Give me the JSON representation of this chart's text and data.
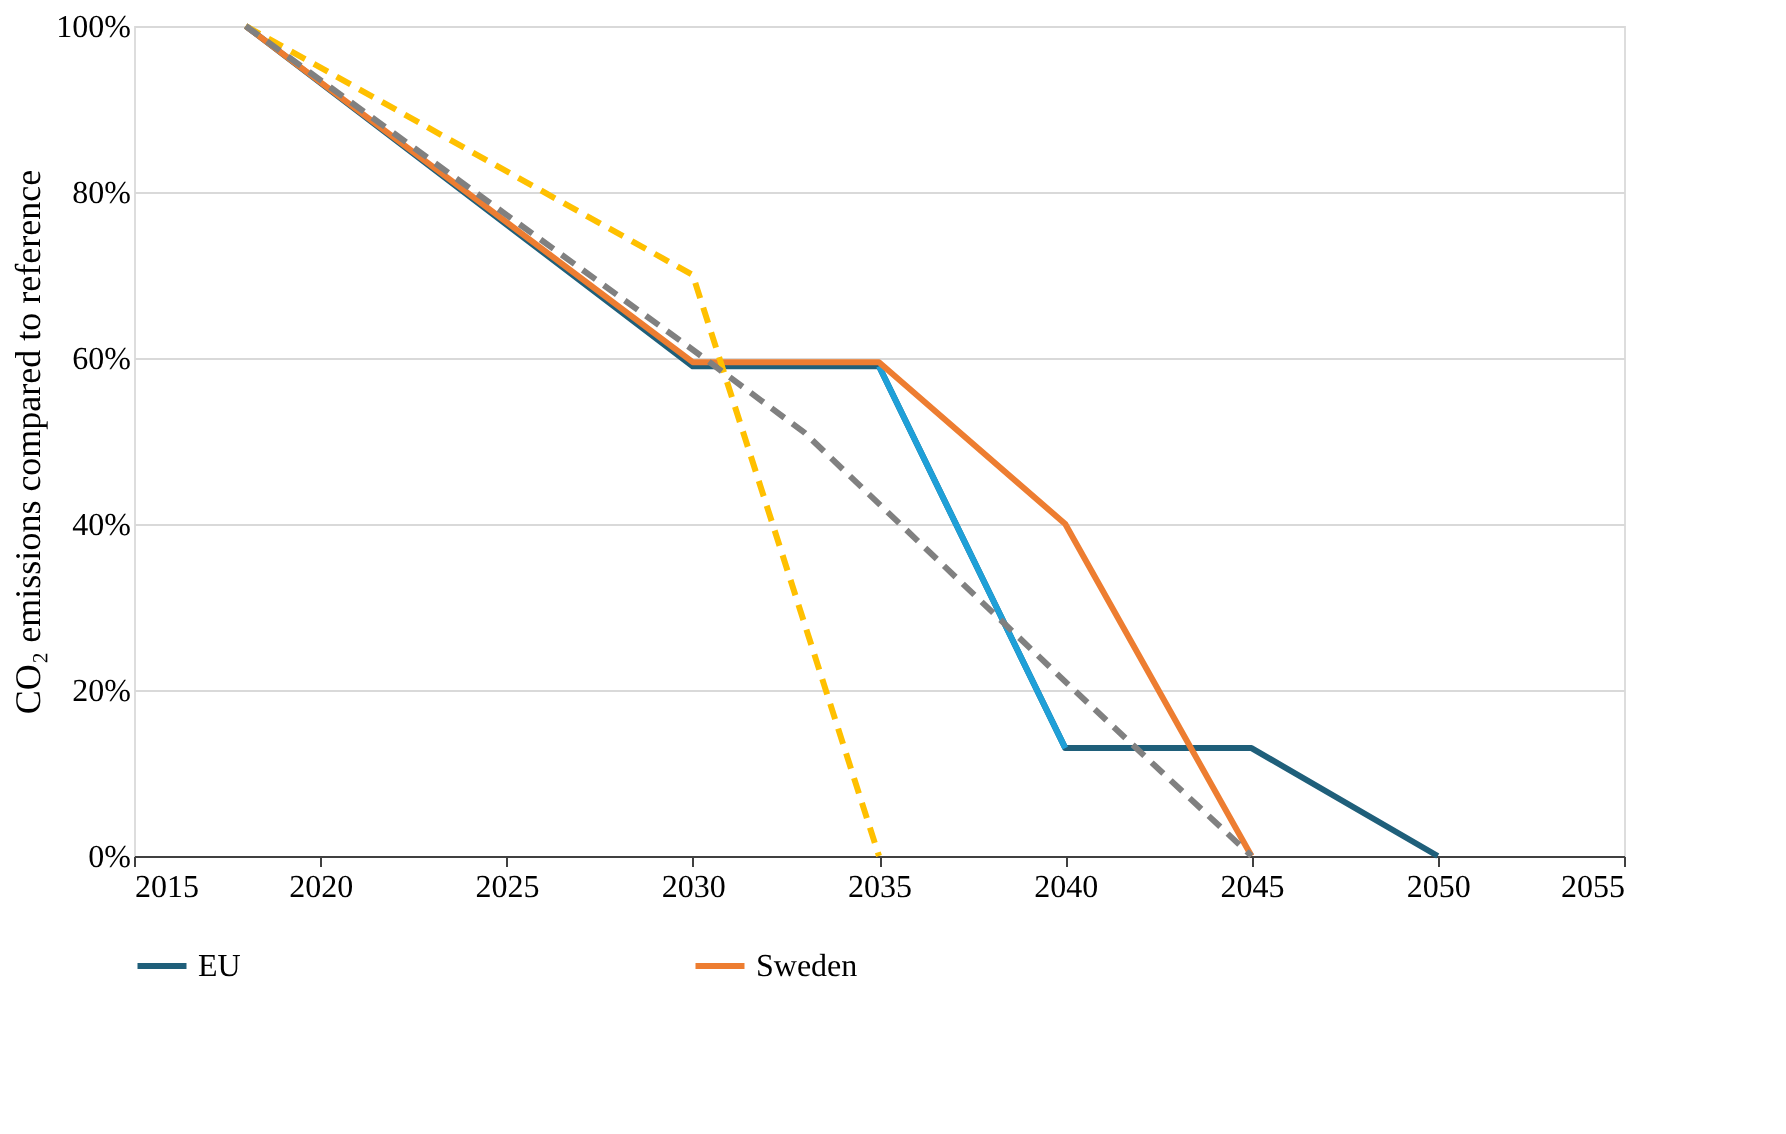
{
  "chart_data": {
    "type": "line",
    "ylabel": "CO₂ emissions compared  to reference",
    "xlim": [
      2015,
      2055
    ],
    "xticks": [
      2015,
      2020,
      2025,
      2030,
      2035,
      2040,
      2045,
      2050,
      2055
    ],
    "ylim": [
      0,
      100
    ],
    "yticks": [
      {
        "value": 0,
        "label": "0%"
      },
      {
        "value": 20,
        "label": "20%"
      },
      {
        "value": 40,
        "label": "40%"
      },
      {
        "value": 60,
        "label": "60%"
      },
      {
        "value": 80,
        "label": "80%"
      },
      {
        "value": 100,
        "label": "100%"
      }
    ],
    "grid": "y",
    "legend": "bottom",
    "marker": "none",
    "series": [
      {
        "name": "EU",
        "color": "#1f5f7a",
        "line_style": "solid",
        "x": [
          2018,
          2030,
          2035,
          2040,
          2045,
          2050
        ],
        "values": [
          100,
          59,
          59,
          13,
          13,
          0
        ]
      },
      {
        "color": "#1fa0d8",
        "line_style": "solid",
        "x": [
          2035,
          2040
        ],
        "values": [
          59,
          13
        ]
      },
      {
        "name": "Sweden",
        "color": "#ed7d31",
        "line_style": "solid",
        "x": [
          2018,
          2030,
          2035,
          2040,
          2045
        ],
        "values": [
          100,
          59.5,
          59.5,
          40,
          0
        ]
      },
      {
        "color": "#ffc000",
        "line_style": "dashed",
        "x": [
          2018,
          2030,
          2035
        ],
        "values": [
          100,
          70,
          0
        ]
      },
      {
        "color": "#808080",
        "line_style": "dashed",
        "x": [
          2018,
          2030,
          2033,
          2040,
          2045
        ],
        "values": [
          100,
          61,
          51,
          21,
          0
        ]
      }
    ]
  }
}
